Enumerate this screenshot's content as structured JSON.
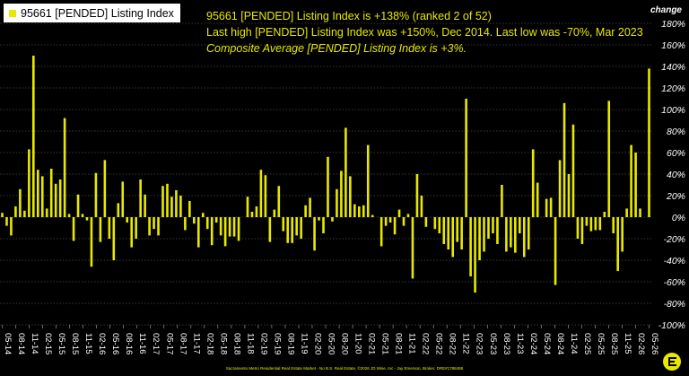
{
  "header": {
    "legend_label": "95661 [PENDED] Listing Index",
    "summary_line1": "95661 [PENDED] Listing Index is +138% (ranked 2 of 52)",
    "summary_line2": "Last high [PENDED] Listing Index was +150%, Dec 2014. Last low was -70%, Mar 2023",
    "summary_line3": "Composite Average [PENDED] Listing Index is +3%.",
    "axis_title": "change"
  },
  "footer": {
    "credit": "Sacramento Metro Residential Real Estate Market - No B.S. Real Estate, ©2026 JD Wise, Inc - Jay Emerson, Broker, DRE#1788488"
  },
  "chart_data": {
    "type": "bar",
    "ylim": [
      -100,
      180
    ],
    "yticks": [
      180,
      160,
      140,
      120,
      100,
      80,
      60,
      40,
      20,
      0,
      -20,
      -40,
      -60,
      -80,
      -100
    ],
    "ytick_labels": [
      "180%",
      "160%",
      "140%",
      "120%",
      "100%",
      "80%",
      "60%",
      "40%",
      "20%",
      "0%",
      "-20%",
      "-40%",
      "-60%",
      "-80%",
      "-100%"
    ],
    "xtick_labels": [
      "05-14",
      "08-14",
      "11-14",
      "02-15",
      "05-15",
      "08-15",
      "11-15",
      "02-16",
      "05-16",
      "08-16",
      "11-16",
      "02-17",
      "05-17",
      "08-17",
      "11-17",
      "02-18",
      "05-18",
      "08-18",
      "11-18",
      "02-19",
      "05-19",
      "08-19",
      "11-19",
      "02-20",
      "05-20",
      "08-20",
      "11-20",
      "02-21",
      "05-21",
      "08-21",
      "11-21",
      "02-22",
      "05-22",
      "08-22",
      "11-22",
      "02-23",
      "05-23",
      "08-23",
      "11-23",
      "02-24",
      "05-24",
      "08-24",
      "11-24",
      "02-25",
      "05-25",
      "08-25",
      "11-25",
      "02-26",
      "05-26"
    ],
    "grid": true,
    "bar_color": "#e8e800",
    "values": [
      4,
      -8,
      -17,
      10,
      26,
      6,
      63,
      150,
      44,
      38,
      8,
      45,
      31,
      35,
      92,
      3,
      -22,
      21,
      3,
      -3,
      -46,
      41,
      -23,
      53,
      -20,
      -40,
      13,
      33,
      -5,
      -28,
      -20,
      35,
      21,
      -17,
      -11,
      -17,
      29,
      31,
      19,
      25,
      20,
      -12,
      15,
      -6,
      -28,
      4,
      -11,
      -26,
      -5,
      -17,
      -27,
      -18,
      -18,
      -22,
      0,
      19,
      5,
      10,
      44,
      39,
      -23,
      7,
      29,
      -13,
      -24,
      -24,
      -17,
      -20,
      11,
      18,
      -31,
      -3,
      -15,
      56,
      -4,
      26,
      43,
      83,
      38,
      12,
      10,
      11,
      67,
      2,
      0,
      -27,
      -8,
      -5,
      -16,
      7,
      -8,
      3,
      -57,
      40,
      20,
      -9,
      0,
      -11,
      -15,
      -25,
      -30,
      -37,
      -23,
      -30,
      110,
      -55,
      -70,
      -40,
      -32,
      -20,
      -15,
      -25,
      30,
      -32,
      -28,
      -33,
      -15,
      -37,
      -30,
      63,
      32,
      0,
      17,
      18,
      -63,
      53,
      106,
      40,
      86,
      -20,
      -25,
      -8,
      -13,
      -12,
      -12,
      5,
      108,
      -15,
      -50,
      -32,
      8,
      67,
      60,
      8,
      0,
      138
    ]
  }
}
